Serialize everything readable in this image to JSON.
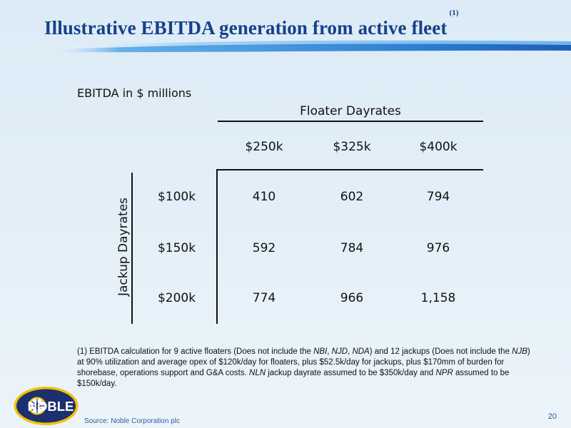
{
  "header": {
    "title": "Illustrative EBITDA generation from active fleet",
    "title_note": "(1)"
  },
  "table": {
    "units_label": "EBITDA in $ millions",
    "column_group_label": "Floater Dayrates",
    "row_group_label": "Jackup Dayrates",
    "columns": [
      "$250k",
      "$325k",
      "$400k"
    ],
    "rows": [
      {
        "label": "$100k",
        "values": [
          "410",
          "602",
          "794"
        ]
      },
      {
        "label": "$150k",
        "values": [
          "592",
          "784",
          "976"
        ]
      },
      {
        "label": "$200k",
        "values": [
          "774",
          "966",
          "1,158"
        ]
      }
    ]
  },
  "footnote": {
    "p1": "(1) EBITDA calculation for 9 active floaters (Does not include the ",
    "i1": "NBI",
    "p2": ", ",
    "i2": "NJD",
    "p3": ", ",
    "i3": "NDA",
    "p4": ") and 12 jackups (Does not include the ",
    "i4": "NJB",
    "p5": ") at 90% utilization and average opex of $120k/day for floaters, plus $52.5k/day for jackups, plus $170mm of burden for shorebase, operations support and G&A costs.  ",
    "i5": "NLN",
    "p6": " jackup dayrate assumed to be $350k/day and ",
    "i6": "NPR",
    "p7": " assumed to be $150k/day."
  },
  "footer": {
    "logo_text": "NOBLE",
    "source": "Source: Noble Corporation plc",
    "page_number": "20"
  },
  "colors": {
    "title": "#173f8a",
    "background": "#dcebf6",
    "accent_blue": "#2a5d9f",
    "logo_navy": "#1c2f6e",
    "logo_gold": "#f2c200"
  }
}
